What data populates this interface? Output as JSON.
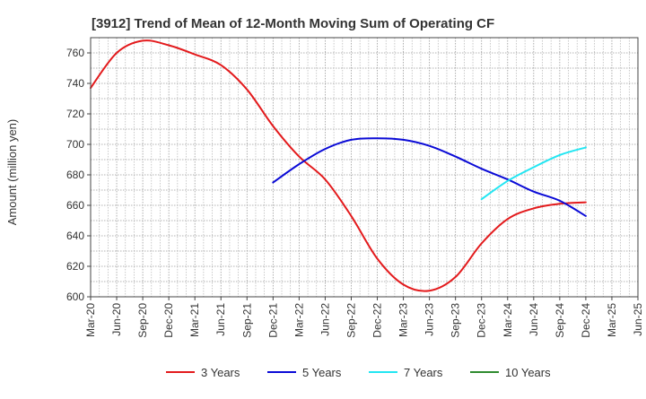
{
  "chart_data": {
    "type": "line",
    "title": "[3912]  Trend of Mean of 12-Month Moving Sum of Operating CF",
    "xlabel": "",
    "ylabel": "Amount (million yen)",
    "ylim": [
      600,
      770
    ],
    "yticks": [
      600,
      620,
      640,
      660,
      680,
      700,
      720,
      740,
      760
    ],
    "categories": [
      "Mar-20",
      "Jun-20",
      "Sep-20",
      "Dec-20",
      "Mar-21",
      "Jun-21",
      "Sep-21",
      "Dec-21",
      "Mar-22",
      "Jun-22",
      "Sep-22",
      "Dec-22",
      "Mar-23",
      "Jun-23",
      "Sep-23",
      "Dec-23",
      "Mar-24",
      "Jun-24",
      "Sep-24",
      "Dec-24",
      "Mar-25",
      "Jun-25"
    ],
    "grid": true,
    "legend_position": "bottom",
    "series": [
      {
        "name": "3 Years",
        "color": "#e31a1c",
        "values": [
          737,
          760,
          768,
          765,
          759,
          752,
          736,
          712,
          692,
          677,
          653,
          625,
          608,
          604,
          613,
          635,
          651,
          658,
          661,
          662,
          null,
          null
        ]
      },
      {
        "name": "5 Years",
        "color": "#0a0ad6",
        "values": [
          null,
          null,
          null,
          null,
          null,
          null,
          null,
          675,
          687,
          697,
          703,
          704,
          703,
          699,
          692,
          684,
          677,
          669,
          663,
          653,
          null,
          null
        ]
      },
      {
        "name": "7 Years",
        "color": "#22e6f2",
        "values": [
          null,
          null,
          null,
          null,
          null,
          null,
          null,
          null,
          null,
          null,
          null,
          null,
          null,
          null,
          null,
          664,
          676,
          685,
          693,
          698,
          null,
          null
        ]
      },
      {
        "name": "10 Years",
        "color": "#2e8b2e",
        "values": [
          null,
          null,
          null,
          null,
          null,
          null,
          null,
          null,
          null,
          null,
          null,
          null,
          null,
          null,
          null,
          null,
          null,
          null,
          null,
          null,
          null,
          null
        ]
      }
    ]
  }
}
